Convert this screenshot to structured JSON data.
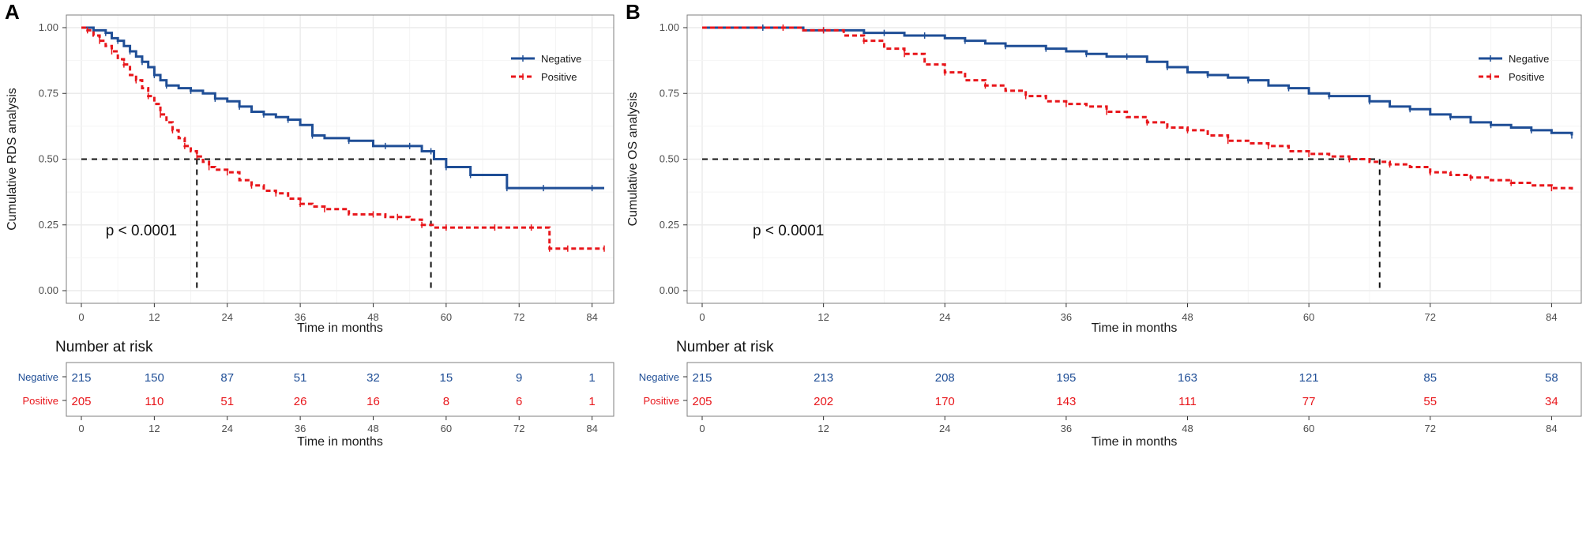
{
  "colors": {
    "negative": "#1f4e96",
    "positive": "#e8161b",
    "grid": "#ebebeb",
    "frame": "#7f7f7f",
    "text": "#1a1a1a",
    "tick": "#4d4d4d"
  },
  "chart_data": [
    {
      "type": "line",
      "panel_label": "A",
      "ylabel": "Cumulative RDS analysis",
      "xlabel": "Time in months",
      "xlim": [
        0,
        86
      ],
      "ylim": [
        0,
        1
      ],
      "xticks": [
        "0",
        "12",
        "24",
        "36",
        "48",
        "60",
        "72",
        "84"
      ],
      "yticks": [
        "0.00",
        "0.25",
        "0.50",
        "0.75",
        "1.00"
      ],
      "pvalue": "p < 0.0001",
      "legend": {
        "position": "top-right",
        "entries": [
          "Negative",
          "Positive"
        ]
      },
      "median_lines": [
        19,
        57.5
      ],
      "series": [
        {
          "name": "Negative",
          "color_key": "negative",
          "x": [
            0,
            2,
            3,
            4,
            5,
            6,
            7,
            8,
            9,
            10,
            11,
            12,
            13,
            14,
            16,
            18,
            20,
            22,
            24,
            26,
            28,
            30,
            32,
            34,
            36,
            38,
            40,
            44,
            48,
            50,
            52,
            54,
            56,
            57.5,
            58,
            60,
            62,
            64,
            68,
            70,
            72,
            76,
            80,
            84,
            86
          ],
          "y": [
            1.0,
            0.99,
            0.99,
            0.98,
            0.96,
            0.95,
            0.93,
            0.91,
            0.89,
            0.87,
            0.85,
            0.82,
            0.8,
            0.78,
            0.77,
            0.76,
            0.75,
            0.73,
            0.72,
            0.7,
            0.68,
            0.67,
            0.66,
            0.65,
            0.63,
            0.59,
            0.58,
            0.57,
            0.55,
            0.55,
            0.55,
            0.55,
            0.53,
            0.53,
            0.5,
            0.47,
            0.47,
            0.44,
            0.44,
            0.39,
            0.39,
            0.39,
            0.39,
            0.39,
            0.39
          ]
        },
        {
          "name": "Positive",
          "color_key": "positive",
          "x": [
            0,
            1,
            2,
            3,
            4,
            5,
            6,
            7,
            8,
            9,
            10,
            11,
            12,
            13,
            14,
            15,
            16,
            17,
            18,
            19,
            20,
            21,
            22,
            24,
            26,
            28,
            30,
            32,
            34,
            36,
            38,
            40,
            44,
            48,
            50,
            52,
            54,
            56,
            58,
            60,
            64,
            68,
            72,
            74,
            76,
            77,
            78,
            80,
            84,
            86
          ],
          "y": [
            1.0,
            0.99,
            0.97,
            0.95,
            0.93,
            0.91,
            0.88,
            0.86,
            0.82,
            0.8,
            0.77,
            0.74,
            0.71,
            0.67,
            0.64,
            0.61,
            0.58,
            0.55,
            0.53,
            0.51,
            0.49,
            0.47,
            0.46,
            0.45,
            0.42,
            0.4,
            0.38,
            0.37,
            0.35,
            0.33,
            0.32,
            0.31,
            0.29,
            0.29,
            0.28,
            0.28,
            0.27,
            0.25,
            0.24,
            0.24,
            0.24,
            0.24,
            0.24,
            0.24,
            0.24,
            0.16,
            0.16,
            0.16,
            0.16,
            0.16
          ]
        }
      ],
      "risk_table": {
        "title": "Number at risk",
        "xlabel": "Time in months",
        "rows": [
          {
            "name": "Negative",
            "color_key": "negative",
            "values": [
              "215",
              "150",
              "87",
              "51",
              "32",
              "15",
              "9",
              "1"
            ]
          },
          {
            "name": "Positive",
            "color_key": "positive",
            "values": [
              "205",
              "110",
              "51",
              "26",
              "16",
              "8",
              "6",
              "1"
            ]
          }
        ]
      }
    },
    {
      "type": "line",
      "panel_label": "B",
      "ylabel": "Cumulative OS analysis",
      "xlabel": "Time in months",
      "xlim": [
        0,
        86
      ],
      "ylim": [
        0,
        1
      ],
      "xticks": [
        "0",
        "12",
        "24",
        "36",
        "48",
        "60",
        "72",
        "84"
      ],
      "yticks": [
        "0.00",
        "0.25",
        "0.50",
        "0.75",
        "1.00"
      ],
      "pvalue": "p < 0.0001",
      "legend": {
        "position": "top-right",
        "entries": [
          "Negative",
          "Positive"
        ]
      },
      "median_lines": [
        67
      ],
      "series": [
        {
          "name": "Negative",
          "color_key": "negative",
          "x": [
            0,
            6,
            10,
            12,
            16,
            18,
            20,
            22,
            24,
            26,
            28,
            30,
            32,
            34,
            36,
            38,
            40,
            42,
            44,
            46,
            48,
            50,
            52,
            54,
            56,
            58,
            60,
            62,
            64,
            66,
            68,
            70,
            72,
            74,
            76,
            78,
            80,
            82,
            84,
            86
          ],
          "y": [
            1.0,
            1.0,
            0.99,
            0.99,
            0.98,
            0.98,
            0.97,
            0.97,
            0.96,
            0.95,
            0.94,
            0.93,
            0.93,
            0.92,
            0.91,
            0.9,
            0.89,
            0.89,
            0.87,
            0.85,
            0.83,
            0.82,
            0.81,
            0.8,
            0.78,
            0.77,
            0.75,
            0.74,
            0.74,
            0.72,
            0.7,
            0.69,
            0.67,
            0.66,
            0.64,
            0.63,
            0.62,
            0.61,
            0.6,
            0.59
          ]
        },
        {
          "name": "Positive",
          "color_key": "positive",
          "x": [
            0,
            8,
            10,
            12,
            14,
            16,
            18,
            20,
            22,
            24,
            26,
            28,
            30,
            32,
            34,
            36,
            38,
            40,
            42,
            44,
            46,
            48,
            50,
            52,
            54,
            56,
            58,
            60,
            62,
            64,
            66,
            68,
            70,
            72,
            74,
            76,
            78,
            80,
            82,
            84,
            86
          ],
          "y": [
            1.0,
            1.0,
            0.99,
            0.99,
            0.97,
            0.95,
            0.92,
            0.9,
            0.86,
            0.83,
            0.8,
            0.78,
            0.76,
            0.74,
            0.72,
            0.71,
            0.7,
            0.68,
            0.66,
            0.64,
            0.62,
            0.61,
            0.59,
            0.57,
            0.56,
            0.55,
            0.53,
            0.52,
            0.51,
            0.5,
            0.49,
            0.48,
            0.47,
            0.45,
            0.44,
            0.43,
            0.42,
            0.41,
            0.4,
            0.39,
            0.38
          ]
        }
      ],
      "risk_table": {
        "title": "Number at risk",
        "xlabel": "Time in months",
        "rows": [
          {
            "name": "Negative",
            "color_key": "negative",
            "values": [
              "215",
              "213",
              "208",
              "195",
              "163",
              "121",
              "85",
              "58"
            ]
          },
          {
            "name": "Positive",
            "color_key": "positive",
            "values": [
              "205",
              "202",
              "170",
              "143",
              "111",
              "77",
              "55",
              "34"
            ]
          }
        ]
      }
    }
  ]
}
